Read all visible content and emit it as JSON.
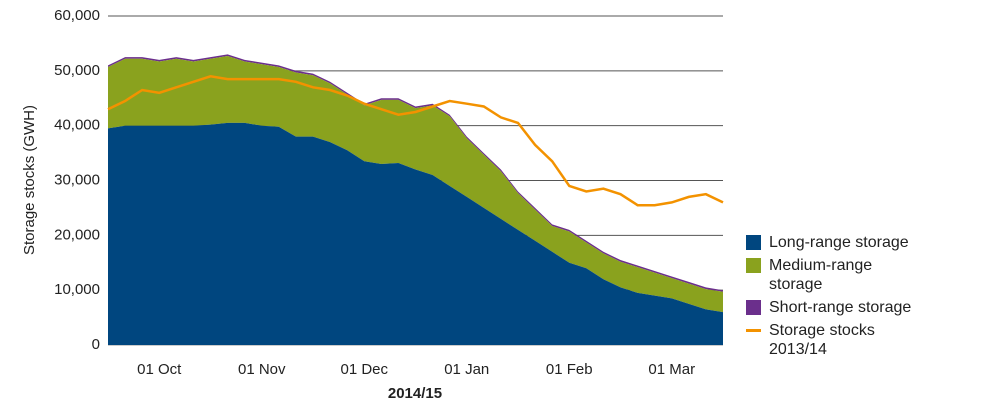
{
  "chart_data": {
    "type": "area",
    "stacked": true,
    "x_label": "2014/15",
    "y_label": "Storage stocks (GWH)",
    "x": [
      null,
      null,
      null,
      "01 Oct",
      null,
      null,
      null,
      null,
      null,
      "01 Nov",
      null,
      null,
      null,
      null,
      null,
      "01 Dec",
      null,
      null,
      null,
      null,
      null,
      "01 Jan",
      null,
      null,
      null,
      null,
      null,
      "01 Feb",
      null,
      null,
      null,
      null,
      null,
      "01 Mar",
      null,
      null,
      null
    ],
    "ylim": [
      0,
      60000
    ],
    "yticks": [
      0,
      {
        "value": 10000,
        "label": "10,000"
      },
      {
        "value": 20000,
        "label": "20,000"
      },
      {
        "value": 30000,
        "label": "30,000"
      },
      {
        "value": 40000,
        "label": "40,000"
      },
      {
        "value": 50000,
        "label": "50,000"
      },
      {
        "value": 60000,
        "label": "60,000"
      }
    ],
    "grid": true,
    "legend": "right",
    "series": [
      {
        "name": "Long-range storage",
        "color": "#00467f",
        "values": [
          39500,
          40000,
          40000,
          40000,
          40000,
          40000,
          40200,
          40500,
          40500,
          40000,
          39800,
          38000,
          38000,
          37000,
          35500,
          33500,
          33000,
          33200,
          32000,
          31000,
          29000,
          27000,
          25000,
          23000,
          21000,
          19000,
          17000,
          15000,
          14000,
          12000,
          10500,
          9500,
          9000,
          8500,
          7500,
          6500,
          6000
        ]
      },
      {
        "name": "Medium-range storage",
        "color": "#8aa21e",
        "values": [
          11200,
          12200,
          12200,
          11700,
          12200,
          11700,
          12000,
          12200,
          11200,
          11200,
          10900,
          11700,
          11200,
          10700,
          10200,
          10200,
          11700,
          11500,
          11200,
          12700,
          12700,
          10700,
          9700,
          8700,
          6700,
          5700,
          4700,
          5700,
          4700,
          4700,
          4700,
          4700,
          4200,
          3700,
          3700,
          3700,
          3700
        ]
      },
      {
        "name": "Short-range storage",
        "color": "#6b2f8c",
        "values": [
          300,
          300,
          300,
          300,
          300,
          300,
          300,
          300,
          300,
          300,
          300,
          300,
          300,
          300,
          300,
          300,
          300,
          300,
          300,
          300,
          300,
          300,
          300,
          300,
          300,
          300,
          300,
          300,
          300,
          300,
          300,
          300,
          300,
          300,
          300,
          300,
          300
        ]
      },
      {
        "name": "Storage stocks 2013/14",
        "color": "#f39200",
        "type": "line",
        "values": [
          43000,
          44500,
          46500,
          46000,
          47000,
          48000,
          49000,
          48500,
          48500,
          48500,
          48500,
          48000,
          47000,
          46500,
          45500,
          44000,
          43000,
          42000,
          42500,
          43500,
          44500,
          44000,
          43500,
          41500,
          40500,
          36500,
          33500,
          29000,
          28000,
          28500,
          27500,
          25500,
          25500,
          26000,
          27000,
          27500,
          26000
        ]
      }
    ]
  }
}
